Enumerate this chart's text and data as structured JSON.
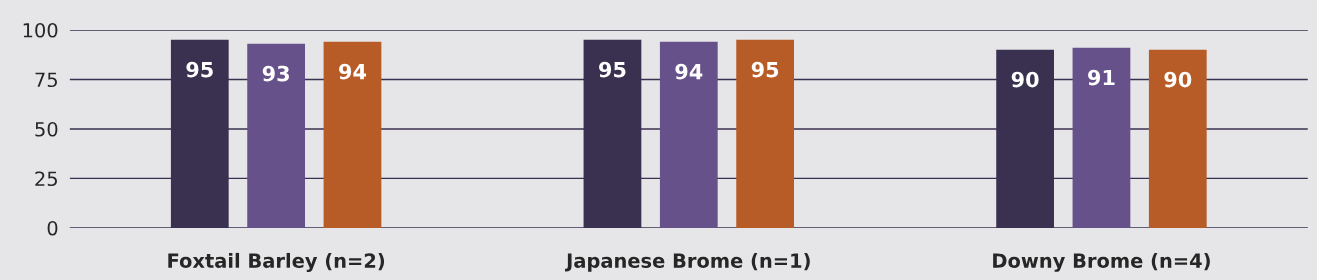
{
  "chart_data": {
    "type": "bar",
    "categories": [
      "Foxtail Barley (n=2)",
      "Japanese Brome (n=1)",
      "Downy Brome (n=4)"
    ],
    "series": [
      {
        "color": "#3a3150",
        "values": [
          95,
          95,
          90
        ]
      },
      {
        "color": "#67518a",
        "values": [
          93,
          94,
          91
        ]
      },
      {
        "color": "#b85c27",
        "values": [
          94,
          95,
          90
        ]
      }
    ],
    "ylim": [
      0,
      100
    ],
    "yticks": [
      0,
      25,
      50,
      75,
      100
    ],
    "grid": "y",
    "data_labels": true
  }
}
